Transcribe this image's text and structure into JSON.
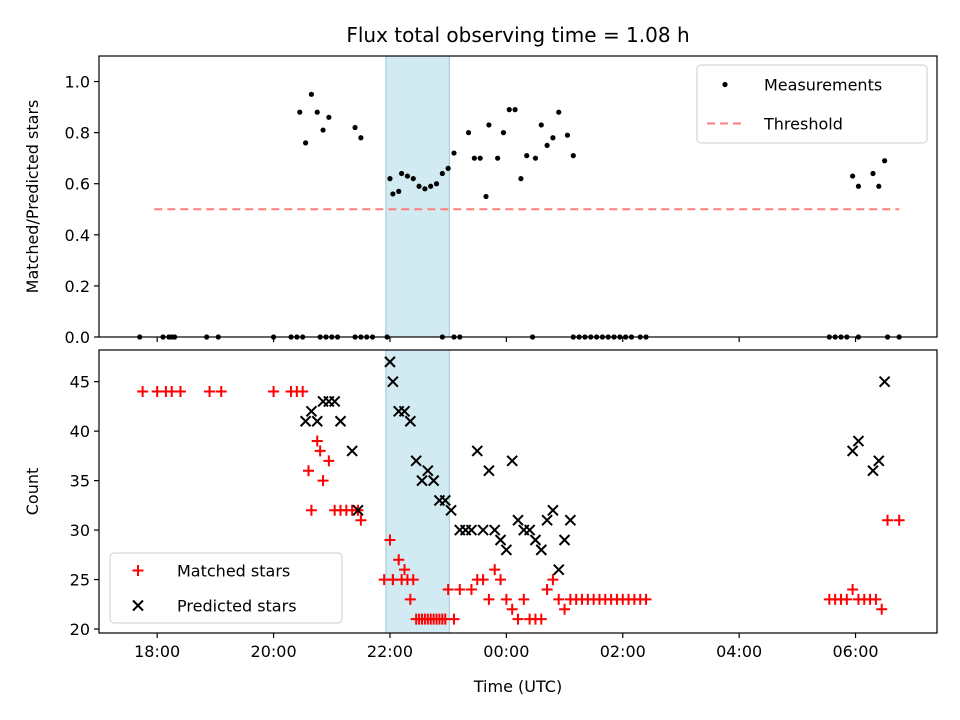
{
  "chart_data": {
    "type": "scatter",
    "title": "Flux total observing time = 1.08 h",
    "xlabel": "Time (UTC)",
    "x_unit": "hours relative to 00:00 UTC",
    "xlim": [
      -7.0,
      7.4
    ],
    "x_ticks": [
      {
        "value": -6,
        "label": "18:00"
      },
      {
        "value": -4,
        "label": "20:00"
      },
      {
        "value": -2,
        "label": "22:00"
      },
      {
        "value": 0,
        "label": "00:00"
      },
      {
        "value": 2,
        "label": "02:00"
      },
      {
        "value": 4,
        "label": "04:00"
      },
      {
        "value": 6,
        "label": "06:00"
      }
    ],
    "highlight_band": {
      "x_start": -2.07,
      "x_end": -0.98,
      "color": "#add8e6"
    },
    "panels": [
      {
        "ylabel": "Matched/Predicted stars",
        "ylim": [
          0,
          1.1
        ],
        "y_ticks": [
          0.0,
          0.2,
          0.4,
          0.6,
          0.8,
          1.0
        ],
        "y_tick_labels": [
          "0.0",
          "0.2",
          "0.4",
          "0.6",
          "0.8",
          "1.0"
        ],
        "legend_position": "top-right",
        "series": [
          {
            "name": "Measurements",
            "marker": "dot",
            "color": "#000000",
            "x": [
              -6.3,
              -5.9,
              -5.8,
              -5.75,
              -5.7,
              -5.15,
              -4.95,
              -4.0,
              -3.7,
              -3.6,
              -3.5,
              -3.2,
              -3.1,
              -3.0,
              -2.9,
              -2.6,
              -2.5,
              -2.4,
              -2.3,
              -2.05,
              -1.1,
              -0.9,
              -0.8,
              0.45,
              1.15,
              1.25,
              1.35,
              1.45,
              1.55,
              1.65,
              1.75,
              1.85,
              1.95,
              2.05,
              2.15,
              2.3,
              2.4,
              5.55,
              5.65,
              5.75,
              5.85,
              6.05,
              6.55,
              6.75,
              -3.55,
              -3.45,
              -3.35,
              -3.25,
              -3.15,
              -3.05,
              -2.6,
              -2.5,
              -2.0,
              -1.95,
              -1.85,
              -1.8,
              -1.7,
              -1.6,
              -1.5,
              -1.4,
              -1.3,
              -1.2,
              -1.1,
              -1.0,
              -0.9,
              -0.65,
              -0.55,
              -0.45,
              -0.35,
              -0.3,
              -0.15,
              -0.05,
              0.05,
              0.15,
              0.25,
              0.35,
              0.5,
              0.6,
              0.7,
              0.8,
              0.9,
              1.05,
              1.15,
              5.95,
              6.05,
              6.3,
              6.4,
              6.5
            ],
            "y": [
              0,
              0,
              0,
              0,
              0,
              0,
              0,
              0,
              0,
              0,
              0,
              0,
              0,
              0,
              0,
              0,
              0,
              0,
              0,
              0,
              0,
              0,
              0,
              0,
              0,
              0,
              0,
              0,
              0,
              0,
              0,
              0,
              0,
              0,
              0,
              0,
              0,
              0,
              0,
              0,
              0,
              0,
              0,
              0,
              0.88,
              0.76,
              0.95,
              0.88,
              0.81,
              0.86,
              0.82,
              0.78,
              0.62,
              0.56,
              0.57,
              0.64,
              0.63,
              0.62,
              0.59,
              0.58,
              0.59,
              0.6,
              0.64,
              0.66,
              0.72,
              0.8,
              0.7,
              0.7,
              0.55,
              0.83,
              0.7,
              0.8,
              0.89,
              0.89,
              0.62,
              0.71,
              0.7,
              0.83,
              0.75,
              0.78,
              0.88,
              0.79,
              0.71,
              0.63,
              0.59,
              0.64,
              0.59,
              0.69
            ]
          },
          {
            "name": "Threshold",
            "marker": "dashed-line",
            "color": "#ff7f7f",
            "x": [
              -6.05,
              6.75
            ],
            "y": [
              0.5,
              0.5
            ]
          }
        ]
      },
      {
        "ylabel": "Count",
        "ylim": [
          19.6,
          48.2
        ],
        "y_ticks": [
          20,
          25,
          30,
          35,
          40,
          45
        ],
        "y_tick_labels": [
          "20",
          "25",
          "30",
          "35",
          "40",
          "45"
        ],
        "legend_position": "bottom-left",
        "series": [
          {
            "name": "Matched stars",
            "marker": "plus",
            "color": "#ff0000",
            "x": [
              -6.25,
              -6.0,
              -5.85,
              -5.75,
              -5.6,
              -5.1,
              -4.9,
              -4.0,
              -3.7,
              -3.6,
              -3.5,
              -3.4,
              -3.35,
              -3.25,
              -3.2,
              -3.15,
              -3.05,
              -2.95,
              -2.85,
              -2.75,
              -2.65,
              -2.55,
              -2.5,
              -2.0,
              -1.95,
              -1.85,
              -1.75,
              -1.65,
              -1.55,
              -1.45,
              -1.35,
              -1.25,
              -1.15,
              -1.05,
              -2.1,
              -1.95,
              -1.8,
              -1.7,
              -1.6,
              -1.5,
              -1.4,
              -1.3,
              -1.2,
              -1.1,
              -1.0,
              -0.9,
              -0.8,
              -0.6,
              -0.5,
              -0.4,
              -0.3,
              -0.2,
              -0.1,
              0.0,
              0.1,
              0.2,
              0.3,
              0.4,
              0.5,
              0.6,
              0.7,
              0.8,
              0.9,
              1.0,
              1.1,
              1.2,
              1.3,
              1.4,
              1.5,
              1.6,
              1.7,
              1.8,
              1.9,
              2.0,
              2.1,
              2.2,
              2.3,
              2.4,
              5.55,
              5.65,
              5.75,
              5.85,
              5.95,
              6.05,
              6.15,
              6.25,
              6.35,
              6.45,
              6.55,
              6.75
            ],
            "y": [
              44,
              44,
              44,
              44,
              44,
              44,
              44,
              44,
              44,
              44,
              44,
              36,
              32,
              39,
              38,
              35,
              37,
              32,
              32,
              32,
              32,
              32,
              31,
              29,
              25,
              27,
              26,
              23,
              21,
              21,
              21,
              21,
              21,
              21,
              25,
              25,
              25,
              25,
              25,
              21,
              21,
              21,
              21,
              21,
              24,
              21,
              24,
              24,
              25,
              25,
              23,
              26,
              25,
              23,
              22,
              21,
              23,
              21,
              21,
              21,
              24,
              25,
              23,
              22,
              23,
              23,
              23,
              23,
              23,
              23,
              23,
              23,
              23,
              23,
              23,
              23,
              23,
              23,
              23,
              23,
              23,
              23,
              24,
              23,
              23,
              23,
              23,
              22,
              31,
              31
            ]
          },
          {
            "name": "Predicted stars",
            "marker": "x",
            "color": "#000000",
            "x": [
              -3.45,
              -3.35,
              -3.25,
              -3.15,
              -3.05,
              -2.95,
              -2.85,
              -2.65,
              -2.55,
              -2.0,
              -1.95,
              -1.85,
              -1.75,
              -1.65,
              -1.55,
              -1.45,
              -1.35,
              -1.25,
              -1.15,
              -1.05,
              -0.95,
              -0.8,
              -0.7,
              -0.6,
              -0.5,
              -0.4,
              -0.3,
              -0.2,
              -0.1,
              0.0,
              0.1,
              0.2,
              0.3,
              0.4,
              0.5,
              0.6,
              0.7,
              0.8,
              0.9,
              1.0,
              1.1,
              5.95,
              6.05,
              6.3,
              6.4,
              6.5
            ],
            "y": [
              41,
              42,
              41,
              43,
              43,
              43,
              41,
              38,
              32,
              47,
              45,
              42,
              42,
              41,
              37,
              35,
              36,
              35,
              33,
              33,
              32,
              30,
              30,
              30,
              38,
              30,
              36,
              30,
              29,
              28,
              37,
              31,
              30,
              30,
              29,
              28,
              31,
              32,
              26,
              29,
              31,
              38,
              39,
              36,
              37,
              45
            ]
          }
        ]
      }
    ]
  }
}
